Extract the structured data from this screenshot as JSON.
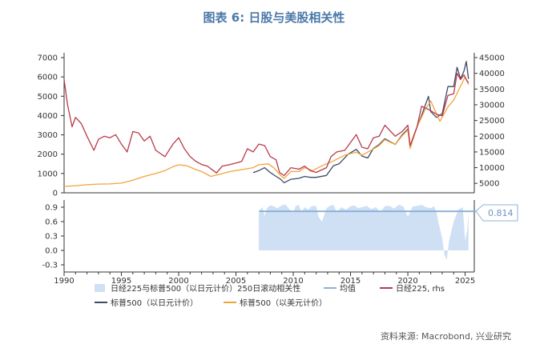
{
  "chart_data": [
    {
      "type": "line",
      "title": "图表 6:  日股与美股相关性",
      "x_ticks": [
        "1990",
        "1995",
        "2000",
        "2005",
        "2010",
        "2015",
        "2020",
        "2025"
      ],
      "xlim": [
        1990,
        2025.8
      ],
      "y_left_ticks": [
        "0",
        "1000",
        "2000",
        "3000",
        "4000",
        "5000",
        "6000",
        "7000"
      ],
      "y_left_lim": [
        0,
        7000
      ],
      "y_right_ticks": [
        "5000",
        "10000",
        "15000",
        "20000",
        "25000",
        "30000",
        "35000",
        "40000",
        "45000"
      ],
      "y_right_lim": [
        2000,
        45000
      ],
      "grid": false,
      "series": [
        {
          "name": "日经225, rhs",
          "axis": "right",
          "color": "#b83a4b",
          "x": [
            1990.0,
            1990.3,
            1990.7,
            1991.0,
            1991.5,
            1992.0,
            1992.6,
            1993.0,
            1993.5,
            1994.0,
            1994.5,
            1995.0,
            1995.5,
            1996.0,
            1996.5,
            1997.0,
            1997.5,
            1998.0,
            1998.8,
            1999.5,
            2000.0,
            2000.5,
            2001.0,
            2001.5,
            2002.0,
            2002.5,
            2003.3,
            2003.8,
            2004.5,
            2005.0,
            2005.5,
            2006.0,
            2006.5,
            2007.0,
            2007.5,
            2008.0,
            2008.5,
            2008.8,
            2009.2,
            2009.8,
            2010.5,
            2011.0,
            2011.5,
            2012.0,
            2012.9,
            2013.3,
            2013.8,
            2014.5,
            2015.0,
            2015.5,
            2016.0,
            2016.5,
            2017.0,
            2017.5,
            2018.0,
            2018.9,
            2019.5,
            2020.0,
            2020.2,
            2020.8,
            2021.2,
            2021.8,
            2022.5,
            2023.0,
            2023.5,
            2024.0,
            2024.3,
            2024.6,
            2024.9,
            2025.1,
            2025.3
          ],
          "values": [
            38000,
            30000,
            23000,
            26000,
            24000,
            20000,
            15500,
            19000,
            20000,
            19500,
            20500,
            17500,
            15000,
            21500,
            21000,
            18500,
            20000,
            15500,
            13500,
            17500,
            19500,
            16000,
            13500,
            12000,
            11000,
            10500,
            8300,
            10500,
            11000,
            11500,
            12000,
            16000,
            15000,
            17500,
            17000,
            13500,
            12500,
            8500,
            7500,
            10000,
            9500,
            10500,
            9000,
            8500,
            10000,
            13500,
            15000,
            15500,
            18000,
            20500,
            16500,
            16000,
            19500,
            20000,
            23500,
            20000,
            21500,
            23500,
            17000,
            23000,
            29500,
            28500,
            27000,
            26500,
            33000,
            33500,
            40000,
            38000,
            39500,
            38000,
            37000
          ]
        },
        {
          "name": "标普500（以日元计价）",
          "axis": "left",
          "color": "#3e4a66",
          "x": [
            2006.5,
            2007.0,
            2007.5,
            2008.0,
            2008.5,
            2008.9,
            2009.2,
            2009.8,
            2010.5,
            2011.0,
            2011.5,
            2012.0,
            2012.9,
            2013.5,
            2014.0,
            2014.8,
            2015.5,
            2016.0,
            2016.5,
            2017.0,
            2017.5,
            2018.0,
            2018.9,
            2019.5,
            2020.0,
            2020.2,
            2020.8,
            2021.2,
            2021.8,
            2022.0,
            2022.5,
            2023.0,
            2023.5,
            2024.0,
            2024.3,
            2024.6,
            2024.9,
            2025.1,
            2025.3
          ],
          "values": [
            1050,
            1150,
            1300,
            1050,
            850,
            700,
            520,
            700,
            750,
            850,
            800,
            800,
            900,
            1400,
            1500,
            2000,
            2250,
            1900,
            1800,
            2300,
            2500,
            2800,
            2500,
            3000,
            3300,
            2400,
            3400,
            4000,
            5000,
            4200,
            3900,
            4100,
            5500,
            5500,
            6500,
            5900,
            6300,
            6800,
            5900
          ]
        },
        {
          "name": "标普500（以美元计价）",
          "axis": "left",
          "color": "#f3a23b",
          "x": [
            1990.0,
            1991.0,
            1992.0,
            1993.0,
            1994.0,
            1995.0,
            1996.0,
            1997.0,
            1998.0,
            1998.8,
            1999.5,
            2000.0,
            2000.7,
            2001.5,
            2002.0,
            2002.8,
            2003.5,
            2004.5,
            2005.5,
            2006.5,
            2007.0,
            2007.8,
            2008.3,
            2008.9,
            2009.2,
            2009.8,
            2010.5,
            2011.0,
            2011.7,
            2012.5,
            2013.5,
            2014.5,
            2015.5,
            2016.0,
            2016.8,
            2017.5,
            2018.0,
            2018.9,
            2019.5,
            2020.0,
            2020.2,
            2020.8,
            2021.5,
            2022.0,
            2022.8,
            2023.5,
            2024.0,
            2024.5,
            2025.0,
            2025.3
          ],
          "values": [
            330,
            370,
            420,
            450,
            460,
            500,
            650,
            850,
            1000,
            1150,
            1350,
            1450,
            1400,
            1200,
            1100,
            850,
            950,
            1100,
            1200,
            1300,
            1450,
            1500,
            1300,
            900,
            750,
            1100,
            1100,
            1300,
            1150,
            1400,
            1650,
            1950,
            2100,
            1950,
            2200,
            2450,
            2750,
            2500,
            2950,
            3250,
            2300,
            3400,
            4300,
            4750,
            3700,
            4450,
            4800,
            5400,
            6000,
            5600
          ]
        }
      ]
    },
    {
      "type": "area",
      "x_ticks": [
        "1990",
        "1995",
        "2000",
        "2005",
        "2010",
        "2015",
        "2020",
        "2025"
      ],
      "xlim": [
        1990,
        2025.8
      ],
      "y_ticks": [
        "0.9",
        "0.6",
        "0.3",
        "0.0",
        "-0.3"
      ],
      "ylim": [
        -0.45,
        1.05
      ],
      "series": [
        {
          "name": "日经225与标普500（以日元计价）250日滚动相关性",
          "color": "#cfe0f5",
          "x": [
            2007.0,
            2007.1,
            2007.3,
            2007.5,
            2007.7,
            2008.0,
            2008.3,
            2008.6,
            2009.0,
            2009.3,
            2009.7,
            2010.0,
            2010.2,
            2010.5,
            2010.7,
            2011.0,
            2011.3,
            2011.6,
            2012.0,
            2012.2,
            2012.5,
            2012.9,
            2013.2,
            2013.5,
            2013.8,
            2014.2,
            2014.6,
            2015.0,
            2015.3,
            2015.7,
            2016.0,
            2016.4,
            2016.8,
            2017.2,
            2017.6,
            2018.0,
            2018.4,
            2018.8,
            2019.2,
            2019.6,
            2020.0,
            2020.4,
            2020.8,
            2021.2,
            2021.6,
            2022.0,
            2022.3,
            2022.5,
            2022.7,
            2023.0,
            2023.2,
            2023.4,
            2023.6,
            2024.0,
            2024.4,
            2024.8,
            2025.0,
            2025.2,
            2025.3
          ],
          "values": [
            0.75,
            0.85,
            0.9,
            0.72,
            0.88,
            0.94,
            0.92,
            0.88,
            0.94,
            0.96,
            0.85,
            0.78,
            0.92,
            0.95,
            0.8,
            0.9,
            0.85,
            0.92,
            0.93,
            0.7,
            0.6,
            0.88,
            0.93,
            0.95,
            0.8,
            0.9,
            0.85,
            0.92,
            0.94,
            0.88,
            0.9,
            0.93,
            0.86,
            0.9,
            0.8,
            0.92,
            0.93,
            0.87,
            0.95,
            0.92,
            0.7,
            0.91,
            0.93,
            0.95,
            0.9,
            0.88,
            0.92,
            0.8,
            0.55,
            0.25,
            -0.1,
            -0.2,
            0.2,
            0.6,
            0.85,
            0.9,
            0.2,
            0.45,
            0.8
          ]
        },
        {
          "name": "均值",
          "color": "#8db3d9",
          "value": 0.814
        }
      ],
      "annotations": [
        "0.814"
      ]
    }
  ],
  "legend": [
    {
      "label": "日经225与标普500（以日元计价）250日滚动相关性",
      "color": "#cfe0f5",
      "kind": "box"
    },
    {
      "label": "均值",
      "color": "#8db3d9",
      "kind": "line"
    },
    {
      "label": "日经225, rhs",
      "color": "#b83a4b",
      "kind": "line"
    },
    {
      "label": "标普500（以日元计价）",
      "color": "#3e4a66",
      "kind": "line"
    },
    {
      "label": "标普500（以美元计价）",
      "color": "#f3a23b",
      "kind": "line"
    }
  ],
  "source": "资料来源: Macrobond, 兴业研究"
}
